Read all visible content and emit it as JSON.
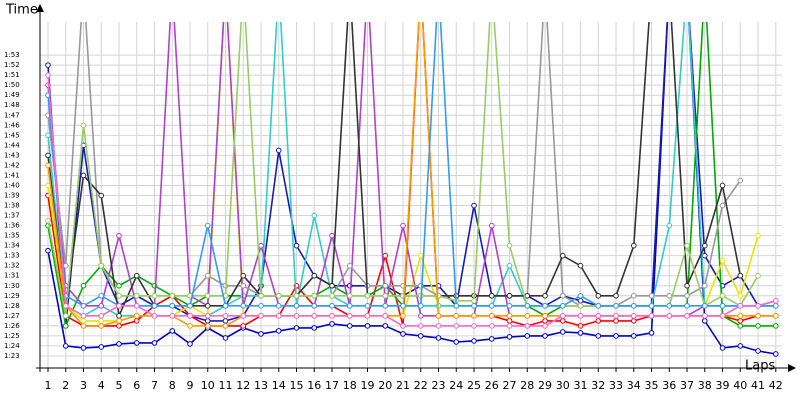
{
  "chart_data": {
    "type": "line",
    "y_label": "Time",
    "x_label": "Laps",
    "grid": true,
    "x": [
      1,
      2,
      3,
      4,
      5,
      6,
      7,
      8,
      9,
      10,
      11,
      12,
      13,
      14,
      15,
      16,
      17,
      18,
      19,
      20,
      21,
      22,
      23,
      24,
      25,
      26,
      27,
      28,
      29,
      30,
      31,
      32,
      33,
      34,
      35,
      36,
      37,
      38,
      39,
      40,
      41,
      42
    ],
    "xlim": [
      0.55,
      42.35
    ],
    "xticks": [
      1,
      2,
      3,
      4,
      5,
      6,
      7,
      8,
      9,
      10,
      11,
      12,
      13,
      14,
      15,
      16,
      17,
      18,
      19,
      20,
      21,
      22,
      23,
      24,
      25,
      26,
      27,
      28,
      29,
      30,
      31,
      32,
      33,
      34,
      35,
      36,
      37,
      38,
      39,
      40,
      41,
      42
    ],
    "ylim": [
      81.8,
      116.3
    ],
    "yticks": [
      {
        "value": 83,
        "label": "1:23"
      },
      {
        "value": 84,
        "label": "1:24"
      },
      {
        "value": 85,
        "label": "1:25"
      },
      {
        "value": 86,
        "label": "1:26"
      },
      {
        "value": 87,
        "label": "1:27"
      },
      {
        "value": 88,
        "label": "1:28"
      },
      {
        "value": 89,
        "label": "1:29"
      },
      {
        "value": 90,
        "label": "1:30"
      },
      {
        "value": 91,
        "label": "1:31"
      },
      {
        "value": 92,
        "label": "1:32"
      },
      {
        "value": 93,
        "label": "1:33"
      },
      {
        "value": 94,
        "label": "1:34"
      },
      {
        "value": 95,
        "label": "1:35"
      },
      {
        "value": 96,
        "label": "1:36"
      },
      {
        "value": 97,
        "label": "1:37"
      },
      {
        "value": 98,
        "label": "1:38"
      },
      {
        "value": 99,
        "label": "1:39"
      },
      {
        "value": 100,
        "label": "1:40"
      },
      {
        "value": 101,
        "label": "1:41"
      },
      {
        "value": 102,
        "label": "1:42"
      },
      {
        "value": 103,
        "label": "1:43"
      },
      {
        "value": 104,
        "label": "1:44"
      },
      {
        "value": 105,
        "label": "1:45"
      },
      {
        "value": 106,
        "label": "1:46"
      },
      {
        "value": 107,
        "label": "1:47"
      },
      {
        "value": 108,
        "label": "1:48"
      },
      {
        "value": 109,
        "label": "1:49"
      },
      {
        "value": 110,
        "label": "1:50"
      },
      {
        "value": 111,
        "label": "1:51"
      },
      {
        "value": 112,
        "label": "1:52"
      },
      {
        "value": 113,
        "label": "1:53"
      }
    ],
    "series": [
      {
        "color": "#0000cc",
        "values": [
          93.5,
          84.0,
          83.8,
          83.9,
          84.2,
          84.3,
          84.3,
          85.5,
          84.2,
          85.8,
          84.8,
          85.8,
          85.2,
          85.5,
          85.8,
          85.8,
          86.2,
          86.0,
          86.0,
          86.0,
          85.2,
          85.0,
          84.8,
          84.4,
          84.5,
          84.7,
          84.9,
          85.0,
          85.0,
          85.4,
          85.3,
          85.0,
          85.0,
          85.0,
          85.3,
          120,
          120,
          86.5,
          83.8,
          84.0,
          83.5,
          83.2
        ]
      },
      {
        "color": "#1a1ab0",
        "values": [
          112,
          86,
          104,
          92,
          88,
          89,
          88,
          88,
          87,
          86.5,
          86.5,
          87,
          90,
          103.5,
          94,
          91,
          90,
          90,
          90,
          90,
          89,
          90,
          90,
          88,
          98,
          89,
          89,
          89,
          88,
          89,
          88.5,
          88,
          88,
          88,
          88,
          120,
          120,
          93,
          90,
          91,
          88,
          88
        ]
      },
      {
        "color": "#ff0000",
        "values": [
          99,
          87,
          86,
          86,
          86,
          86.5,
          88,
          89,
          87,
          86,
          86,
          86,
          87,
          87,
          90,
          88,
          88,
          87,
          87,
          93,
          86,
          120,
          87,
          87,
          87,
          87,
          86.5,
          86,
          86.5,
          86.5,
          86,
          86.5,
          86.5,
          86.5,
          87,
          87,
          87,
          87,
          87,
          86.5,
          87,
          87
        ]
      },
      {
        "color": "#00aa00",
        "values": [
          96,
          86,
          90,
          92,
          90,
          91,
          90,
          89,
          88,
          89,
          89,
          89,
          89,
          89,
          89,
          89,
          90,
          89,
          89,
          90,
          88,
          88,
          88,
          88,
          88,
          88,
          88,
          88,
          87,
          88,
          88,
          88,
          88,
          88,
          88,
          88,
          88,
          120,
          87,
          86,
          86,
          86
        ]
      },
      {
        "color": "#e6e600",
        "values": [
          100,
          88,
          86.5,
          86.5,
          86.5,
          87,
          87,
          87,
          88,
          87,
          120,
          87,
          87,
          87,
          87,
          87,
          87,
          87,
          87,
          87,
          87,
          93,
          88,
          88,
          88,
          88,
          88,
          88,
          88,
          88,
          88,
          88,
          88,
          88,
          88,
          88,
          88,
          88,
          92.5,
          89,
          95,
          null
        ]
      },
      {
        "color": "#33cccc",
        "values": [
          105,
          88,
          87,
          88,
          87,
          87,
          87,
          87,
          87,
          87,
          88,
          89,
          89,
          120,
          88,
          97,
          89,
          88,
          88,
          88,
          88,
          88,
          88,
          88,
          88,
          88,
          92,
          88,
          88,
          88,
          88,
          88,
          88,
          88,
          88,
          96,
          120,
          88,
          88,
          88,
          88,
          88
        ]
      },
      {
        "color": "#b040d0",
        "values": [
          110,
          90,
          88,
          88,
          95,
          88,
          88,
          120,
          89,
          88,
          120,
          88,
          94,
          88,
          88,
          88,
          95,
          88,
          120,
          88,
          96,
          87,
          87,
          87,
          87,
          96,
          87,
          87,
          87,
          87,
          87,
          87,
          87,
          87,
          87,
          87,
          87,
          88,
          88,
          88,
          88,
          88.5
        ]
      },
      {
        "color": "#999999",
        "values": [
          107,
          92,
          120,
          92,
          89,
          89,
          89,
          89,
          89,
          91,
          90,
          90,
          89,
          89,
          89,
          89,
          89,
          92,
          90,
          90,
          90,
          90,
          89,
          89,
          89,
          89,
          89,
          89,
          120,
          89,
          88,
          88,
          88,
          89,
          89,
          89,
          89,
          90,
          98,
          100.5,
          null,
          null
        ]
      },
      {
        "color": "#333333",
        "values": [
          103,
          88,
          101,
          99,
          87,
          91,
          88,
          88,
          88,
          88,
          88,
          91,
          89,
          89,
          89,
          91,
          90,
          120,
          89,
          89,
          89,
          89,
          89,
          89,
          89,
          89,
          89,
          89,
          89,
          93,
          92,
          89,
          89,
          94,
          120,
          120,
          90,
          94,
          100,
          91,
          null,
          null
        ]
      },
      {
        "color": "#99cc66",
        "values": [
          96.5,
          87,
          106,
          92,
          89,
          89,
          89,
          89,
          89,
          89,
          89,
          120,
          89,
          89,
          89,
          89,
          89,
          89,
          89,
          89,
          89,
          89,
          89,
          88.5,
          88.5,
          120,
          94,
          88,
          88,
          88,
          88,
          88,
          88,
          88,
          88,
          88,
          94,
          88,
          89,
          88,
          91,
          null
        ]
      },
      {
        "color": "#ff9900",
        "values": [
          102,
          88,
          86,
          86,
          86.5,
          87,
          87,
          87,
          86,
          86,
          86,
          87,
          87,
          87,
          87,
          87,
          87,
          87,
          87,
          87,
          87,
          120,
          87,
          87,
          87,
          87,
          87,
          87,
          87,
          87,
          87,
          87,
          87,
          87,
          87,
          87,
          87,
          87,
          87,
          87,
          87,
          87
        ]
      },
      {
        "color": "#3399ff",
        "values": [
          109,
          89,
          88,
          89,
          88,
          88,
          88,
          88,
          88,
          96,
          88,
          88,
          88,
          88,
          88,
          88,
          88,
          88,
          88,
          88,
          88,
          88,
          120,
          88,
          88,
          88,
          88,
          88,
          88,
          88,
          89,
          88,
          88,
          88,
          88,
          88,
          88,
          88,
          88,
          88,
          88,
          88
        ]
      },
      {
        "color": "#ff66cc",
        "values": [
          111,
          88,
          87,
          87,
          88,
          88,
          87,
          87,
          87,
          87,
          87,
          87,
          87,
          87,
          87,
          87,
          87,
          87,
          87,
          87,
          86,
          86,
          86,
          86,
          86,
          86,
          86,
          86,
          86,
          87,
          87,
          87,
          87,
          87,
          87,
          87,
          87,
          87,
          87,
          88,
          88,
          88.5
        ]
      }
    ]
  }
}
